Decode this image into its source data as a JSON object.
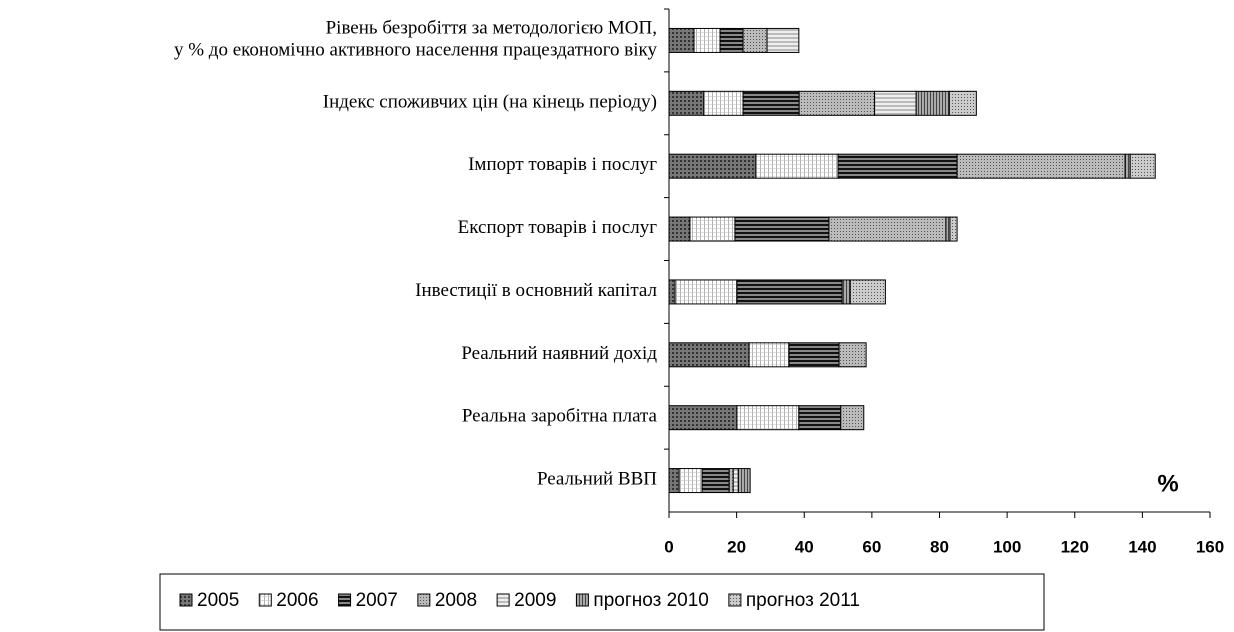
{
  "chart_data": {
    "type": "hbar_stacked",
    "categories": [
      "Рівень безробіття за методологією МОП,\nу % до економічно активного населення працездатного віку",
      "Індекс споживчих цін (на кінець періоду)",
      "Імпорт товарів і послуг",
      "Експорт товарів і послуг",
      "Інвестиції в основний капітал",
      "Реальний наявний дохід",
      "Реальна заробітна плата",
      "Реальний ВВП"
    ],
    "series": [
      {
        "name": "2005",
        "color": "#555555",
        "values": [
          7.4,
          10.3,
          25.7,
          6.2,
          1.8,
          23.7,
          20.1,
          3
        ]
      },
      {
        "name": "2006",
        "color": "#dddddd",
        "values": [
          7.7,
          11.6,
          24.3,
          13.3,
          18.3,
          11.8,
          18.3,
          6.8
        ]
      },
      {
        "name": "2007",
        "color": "#333333",
        "values": [
          6.8,
          16.6,
          35.2,
          27.8,
          31.1,
          14.8,
          12.4,
          8
        ]
      },
      {
        "name": "2008",
        "color": "#999999",
        "values": [
          7.1,
          22.3,
          49.7,
          34.6,
          0,
          8,
          6.8,
          1.2
        ]
      },
      {
        "name": "2009",
        "color": "#cccccc",
        "values": [
          9.4,
          12.3,
          0,
          0,
          0,
          0,
          0,
          1.5
        ]
      },
      {
        "name": "прогноз 2010",
        "color": "#888888",
        "values": [
          0,
          9.8,
          1.5,
          1.2,
          2.4,
          0,
          0,
          3.5
        ]
      },
      {
        "name": "прогноз 2011",
        "color": "#aaaaaa",
        "values": [
          0,
          8,
          7.4,
          2.1,
          10.4,
          0,
          0,
          0
        ]
      }
    ],
    "x_label": "%",
    "xlim": [
      0,
      160
    ],
    "xticks": [
      0,
      20,
      40,
      60,
      80,
      100,
      120,
      140,
      160
    ],
    "legend": "bottom"
  }
}
